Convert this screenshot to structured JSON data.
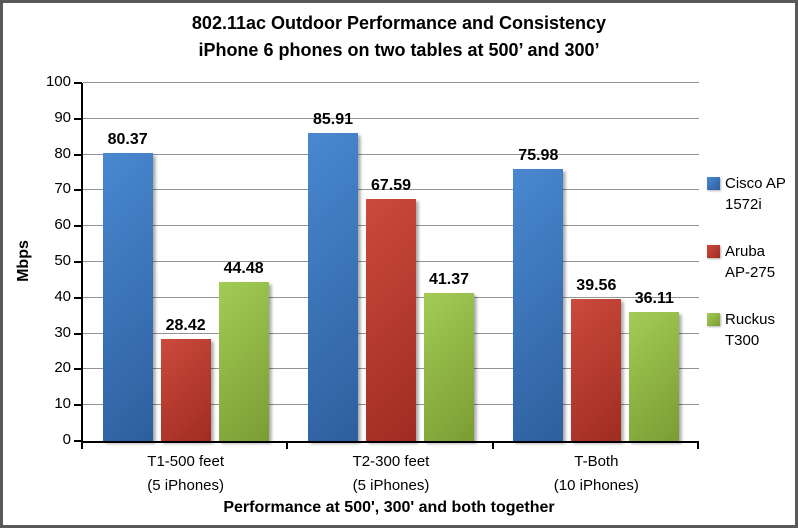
{
  "chart_data": {
    "type": "bar",
    "title": "802.11ac Outdoor Performance and Consistency",
    "subtitle": "iPhone 6 phones on two tables at 500’ and 300’",
    "xlabel": "Performance at 500', 300' and both together",
    "ylabel": "Mbps",
    "ylim": [
      0,
      100
    ],
    "ytick_step": 10,
    "grid": true,
    "legend_position": "right",
    "categories": [
      {
        "line1": "T1-500 feet",
        "line2": "(5 iPhones)"
      },
      {
        "line1": "T2-300 feet",
        "line2": "(5 iPhones)"
      },
      {
        "line1": "T-Both",
        "line2": "(10 iPhones)"
      }
    ],
    "series": [
      {
        "name": "Cisco AP 1572i",
        "legend_lines": [
          "Cisco AP",
          "1572i"
        ],
        "values": [
          80.37,
          85.91,
          75.98
        ],
        "color": "#3A78C2",
        "gradient": [
          "#4988D0",
          "#2D5F9E"
        ]
      },
      {
        "name": "Aruba AP-275",
        "legend_lines": [
          "Aruba",
          "AP-275"
        ],
        "values": [
          28.42,
          67.59,
          39.56
        ],
        "color": "#BE3B2E",
        "gradient": [
          "#CB4A3C",
          "#A02C21"
        ]
      },
      {
        "name": "Ruckus T300",
        "legend_lines": [
          "Ruckus",
          "T300"
        ],
        "values": [
          44.48,
          41.37,
          36.11
        ],
        "color": "#8FBB40",
        "gradient": [
          "#A2CC56",
          "#7B9C33"
        ]
      }
    ],
    "colors": {
      "gridline": "#939393",
      "axis": "#000000",
      "frame_border": "#595959",
      "text": "#000000"
    }
  }
}
